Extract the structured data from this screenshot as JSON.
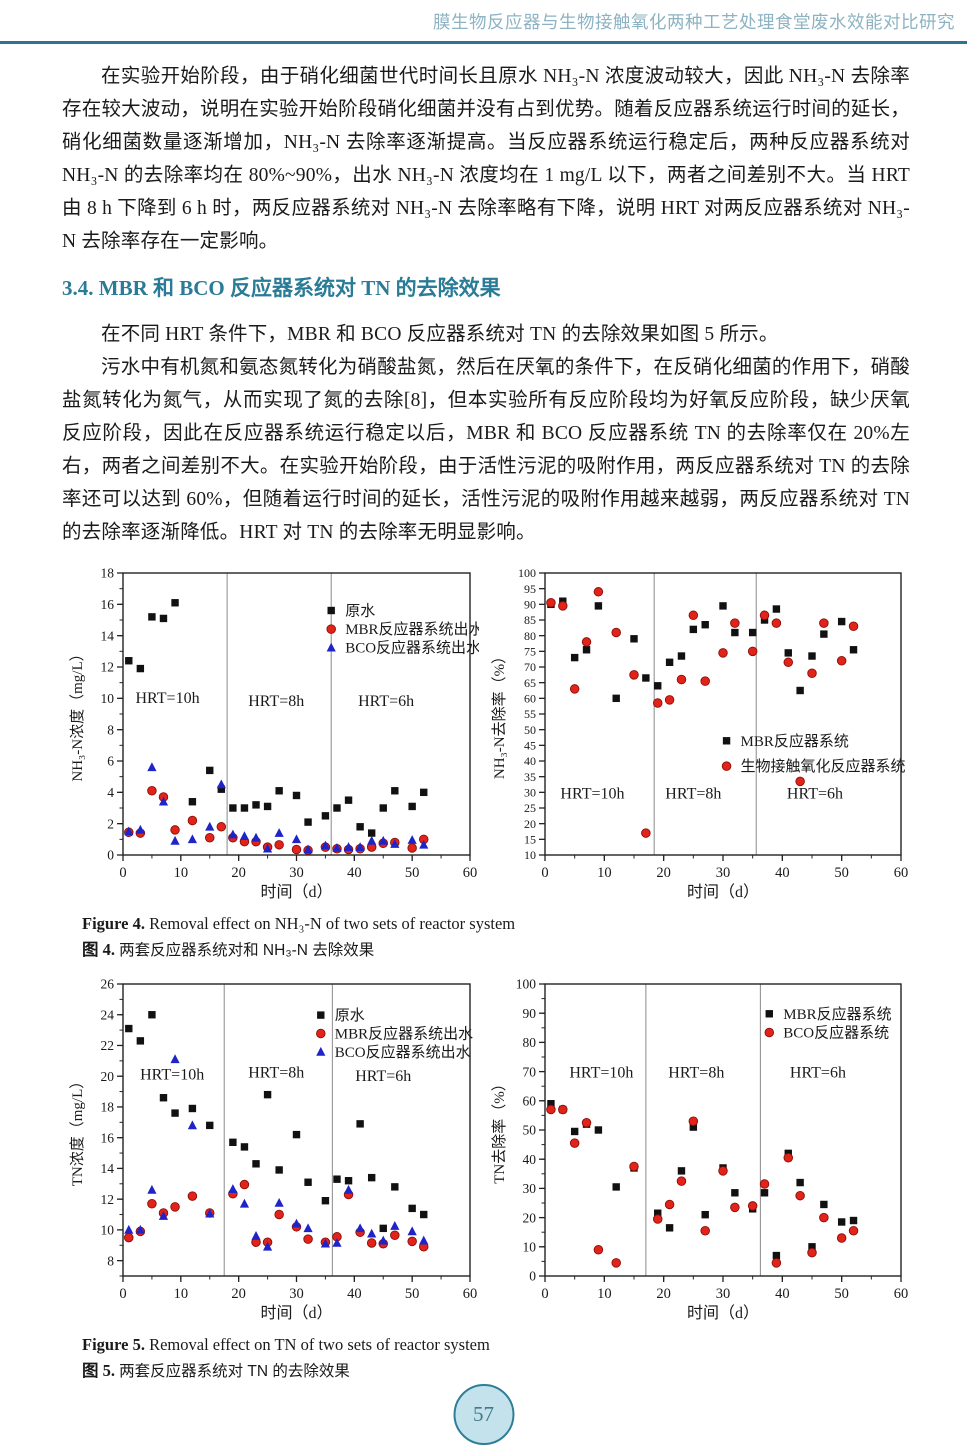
{
  "page": {
    "header_title": "膜生物反应器与生物接触氧化两种工艺处理食堂废水效能对比研究",
    "page_number": "57"
  },
  "colors": {
    "header_text": "#8db3c3",
    "header_rule": "#2e7391",
    "heading": "#2a7b96",
    "series_black": "#111111",
    "series_red": "#e2231a",
    "series_blue": "#1f24c8",
    "badge_fill": "#c4e2ec",
    "badge_border": "#2e7e98"
  },
  "paragraphs": {
    "p1": "在实验开始阶段，由于硝化细菌世代时间长且原水 NH₃-N 浓度波动较大，因此 NH₃-N 去除率存在较大波动，说明在实验开始阶段硝化细菌并没有占到优势。随着反应器系统运行时间的延长，硝化细菌数量逐渐增加，NH₃-N 去除率逐渐提高。当反应器系统运行稳定后，两种反应器系统对 NH₃-N 的去除率均在 80%~90%，出水 NH₃-N 浓度均在 1 mg/L 以下，两者之间差别不大。当 HRT 由 8 h 下降到 6 h 时，两反应器系统对 NH₃-N 去除率略有下降，说明 HRT 对两反应器系统对 NH₃-N 去除率存在一定影响。",
    "heading": "3.4. MBR 和 BCO 反应器系统对 TN 的去除效果",
    "p2": "在不同 HRT 条件下，MBR 和 BCO 反应器系统对 TN 的去除效果如图 5 所示。",
    "p3": "污水中有机氮和氨态氮转化为硝酸盐氮，然后在厌氧的条件下，在反硝化细菌的作用下，硝酸盐氮转化为氮气，从而实现了氮的去除[8]，但本实验所有反应阶段均为好氧反应阶段，缺少厌氧反应阶段，因此在反应器系统运行稳定以后，MBR 和 BCO 反应器系统 TN 的去除率仅在 20%左右，两者之间差别不大。在实验开始阶段，由于活性污泥的吸附作用，两反应器系统对 TN 的去除率还可以达到 60%，但随着运行时间的延长，活性污泥的吸附作用越来越弱，两反应器系统对 TN 的去除率逐渐降低。HRT 对 TN 的去除率无明显影响。"
  },
  "figure4": {
    "caption_en_label": "Figure 4.",
    "caption_en": "Removal effect on NH₃-N of two sets of reactor system",
    "caption_zh_label": "图 4.",
    "caption_zh": "两套反应器系统对和 NH₃-N 去除效果"
  },
  "figure5": {
    "caption_en_label": "Figure 5.",
    "caption_en": "Removal effect on TN of two sets of reactor system",
    "caption_zh_label": "图 5.",
    "caption_zh": "两套反应器系统对 TN 的去除效果"
  },
  "chart_data": [
    {
      "type": "scatter",
      "name": "nh3n-concentration",
      "title": "",
      "xlabel": "时间（d）",
      "ylabel": "NH₃-N浓度（mg/L）",
      "xlim": [
        0,
        60
      ],
      "ylim": [
        0,
        18
      ],
      "xtick_step": 10,
      "x_minor_step": 5,
      "ytick_step": 2,
      "y_minor_step": 1,
      "grid": false,
      "dividers": [
        18,
        36
      ],
      "region_labels": [
        {
          "text": "HRT=10h",
          "x": 7.7,
          "y": 9.7
        },
        {
          "text": "HRT=8h",
          "x": 26.5,
          "y": 9.5
        },
        {
          "text": "HRT=6h",
          "x": 45.5,
          "y": 9.5
        }
      ],
      "legend": {
        "fx": 0.6,
        "fy": 0.1,
        "row_fh": 0.066
      },
      "x": [
        1,
        3,
        5,
        7,
        9,
        12,
        15,
        17,
        19,
        21,
        23,
        25,
        27,
        30,
        32,
        35,
        37,
        39,
        41,
        43,
        45,
        47,
        50,
        52
      ],
      "series": [
        {
          "name": "原水",
          "marker": "square",
          "color": "#111111",
          "values": [
            12.4,
            11.9,
            15.2,
            15.1,
            16.1,
            3.4,
            5.4,
            4.2,
            3.0,
            3.0,
            3.2,
            3.1,
            4.1,
            3.8,
            2.1,
            2.5,
            3.0,
            3.5,
            1.8,
            1.4,
            3.0,
            4.1,
            3.1,
            4.0
          ]
        },
        {
          "name": "MBR反应器系统出水",
          "marker": "circle",
          "color": "#e2231a",
          "edge": "#8a0f0a",
          "values": [
            1.45,
            1.4,
            4.1,
            3.7,
            1.6,
            2.2,
            1.1,
            1.8,
            1.1,
            0.85,
            0.85,
            0.5,
            0.65,
            0.35,
            0.3,
            0.5,
            0.4,
            0.35,
            0.4,
            0.5,
            0.75,
            0.8,
            0.45,
            1.0
          ]
        },
        {
          "name": "BCO反应器系统出水",
          "marker": "triangle",
          "color": "#1f24c8",
          "values": [
            1.5,
            1.6,
            5.6,
            3.4,
            0.9,
            1.0,
            1.8,
            4.5,
            1.3,
            1.2,
            1.1,
            0.4,
            1.4,
            1.0,
            0.35,
            0.6,
            0.45,
            0.5,
            0.5,
            0.9,
            0.9,
            0.7,
            0.95,
            0.65
          ]
        }
      ]
    },
    {
      "type": "scatter",
      "name": "nh3n-removal-rate",
      "title": "",
      "xlabel": "时间（d）",
      "ylabel": "NH₃-N去除率（%）",
      "xlim": [
        0,
        60
      ],
      "ylim": [
        10,
        100
      ],
      "xtick_step": 10,
      "x_minor_step": 5,
      "ytick_step": 5,
      "y_minor_step": null,
      "grid": false,
      "dividers": [
        18.4,
        35.6
      ],
      "region_labels": [
        {
          "text": "HRT=10h",
          "x": 8,
          "y": 28
        },
        {
          "text": "HRT=8h",
          "x": 25,
          "y": 28
        },
        {
          "text": "HRT=6h",
          "x": 45.5,
          "y": 28
        }
      ],
      "legend": {
        "fx": 0.51,
        "fy": 0.55,
        "row_fh": 0.09
      },
      "x": [
        1,
        3,
        5,
        7,
        9,
        12,
        15,
        17,
        19,
        21,
        23,
        25,
        27,
        30,
        32,
        35,
        37,
        39,
        41,
        43,
        45,
        47,
        50,
        52
      ],
      "series": [
        {
          "name": "MBR反应器系统",
          "marker": "square",
          "color": "#111111",
          "values": [
            90,
            91,
            73,
            75.5,
            89.5,
            60,
            79,
            66.5,
            64,
            71.5,
            73.5,
            82,
            83.5,
            89.5,
            81,
            81,
            85,
            88.5,
            74.5,
            62.5,
            73.5,
            80.5,
            84.5,
            75.5
          ]
        },
        {
          "name": "生物接触氧化反应器系统",
          "marker": "circle",
          "color": "#e2231a",
          "edge": "#8a0f0a",
          "values": [
            90.5,
            89.5,
            63,
            78,
            94,
            81,
            67.5,
            17,
            58.5,
            59.5,
            66,
            86.5,
            65.5,
            74.5,
            84,
            75,
            86.5,
            84,
            71.5,
            33.5,
            68,
            84,
            72,
            83
          ]
        }
      ]
    },
    {
      "type": "scatter",
      "name": "tn-concentration",
      "title": "",
      "xlabel": "时间（d）",
      "ylabel": "TN浓度（mg/L）",
      "xlim": [
        0,
        60
      ],
      "ylim": [
        7,
        26
      ],
      "xtick_step": 10,
      "x_minor_step": 5,
      "ytick_step": 2,
      "y_minor_step": 1,
      "grid": false,
      "dividers": [
        17.5,
        36.2
      ],
      "region_labels": [
        {
          "text": "HRT=10h",
          "x": 8.5,
          "y": 19.8
        },
        {
          "text": "HRT=8h",
          "x": 26.5,
          "y": 19.9
        },
        {
          "text": "HRT=6h",
          "x": 45,
          "y": 19.7
        }
      ],
      "legend": {
        "fx": 0.57,
        "fy": 0.075,
        "row_fh": 0.063
      },
      "x": [
        1,
        3,
        5,
        7,
        9,
        12,
        15,
        19,
        21,
        23,
        25,
        27,
        30,
        32,
        35,
        37,
        39,
        41,
        43,
        45,
        47,
        50,
        52
      ],
      "series": [
        {
          "name": "原水",
          "marker": "square",
          "color": "#111111",
          "values": [
            23.1,
            22.3,
            24.0,
            18.6,
            17.6,
            17.9,
            16.8,
            15.7,
            15.4,
            14.3,
            18.8,
            13.9,
            16.2,
            13.1,
            11.9,
            13.3,
            13.2,
            16.9,
            13.4,
            10.1,
            12.8,
            11.4,
            11.0
          ]
        },
        {
          "name": "MBR反应器系统出水",
          "marker": "circle",
          "color": "#e2231a",
          "edge": "#8a0f0a",
          "values": [
            9.5,
            9.9,
            11.7,
            11.1,
            11.5,
            12.2,
            11.1,
            12.35,
            12.95,
            9.2,
            9.2,
            11.0,
            10.2,
            9.4,
            9.2,
            9.55,
            12.3,
            9.85,
            9.15,
            9.1,
            9.65,
            9.25,
            8.9
          ]
        },
        {
          "name": "BCO反应器系统出水",
          "marker": "triangle",
          "color": "#1f24c8",
          "values": [
            10.0,
            10.0,
            12.6,
            10.9,
            21.1,
            16.8,
            11.05,
            12.65,
            11.7,
            9.6,
            8.9,
            11.75,
            10.4,
            10.1,
            9.1,
            9.15,
            12.6,
            10.1,
            9.75,
            9.3,
            10.25,
            9.9,
            9.3
          ]
        }
      ]
    },
    {
      "type": "scatter",
      "name": "tn-removal-rate",
      "title": "",
      "xlabel": "时间（d）",
      "ylabel": "TN去除率（%）",
      "xlim": [
        0,
        60
      ],
      "ylim": [
        0,
        100
      ],
      "xtick_step": 10,
      "x_minor_step": 5,
      "ytick_step": 10,
      "y_minor_step": 5,
      "grid": false,
      "dividers": [
        17,
        36.3
      ],
      "region_labels": [
        {
          "text": "HRT=10h",
          "x": 9.5,
          "y": 68
        },
        {
          "text": "HRT=8h",
          "x": 25.5,
          "y": 68
        },
        {
          "text": "HRT=6h",
          "x": 46,
          "y": 68
        }
      ],
      "legend": {
        "fx": 0.63,
        "fy": 0.07,
        "row_fh": 0.064
      },
      "x": [
        1,
        3,
        5,
        7,
        9,
        12,
        15,
        19,
        21,
        23,
        25,
        27,
        30,
        32,
        35,
        37,
        39,
        41,
        43,
        45,
        47,
        50,
        52
      ],
      "series": [
        {
          "name": "MBR反应器系统",
          "marker": "square",
          "color": "#111111",
          "values": [
            59,
            57,
            49.5,
            52,
            50,
            30.5,
            37,
            21.5,
            16.5,
            36,
            51,
            21,
            37,
            28.5,
            23,
            28.5,
            7,
            42,
            32,
            10,
            24.5,
            18.5,
            19
          ]
        },
        {
          "name": "BCO反应器系统",
          "marker": "circle",
          "color": "#e2231a",
          "edge": "#8a0f0a",
          "values": [
            57,
            57,
            45.5,
            52.5,
            9,
            4.5,
            37.5,
            19.5,
            24.5,
            32.5,
            53,
            15.5,
            36,
            23.5,
            24,
            31.5,
            4.5,
            40.5,
            27.5,
            8,
            20,
            13,
            15.5
          ]
        }
      ]
    }
  ]
}
